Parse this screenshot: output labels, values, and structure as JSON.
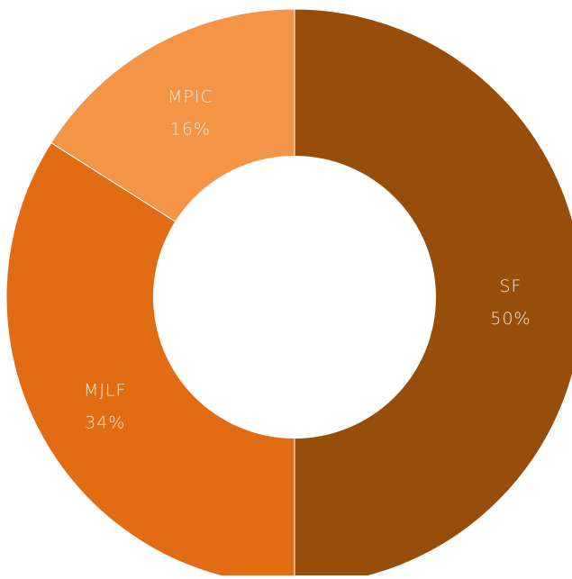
{
  "chart_data": {
    "type": "pie",
    "variant": "donut",
    "categories": [
      "SF",
      "MJLF",
      "MPIC"
    ],
    "values": [
      50,
      34,
      16
    ],
    "labels": [
      "50%",
      "34%",
      "16%"
    ],
    "colors": [
      "#984e0b",
      "#e26c13",
      "#f39446"
    ],
    "legend": "none",
    "grid": false
  }
}
